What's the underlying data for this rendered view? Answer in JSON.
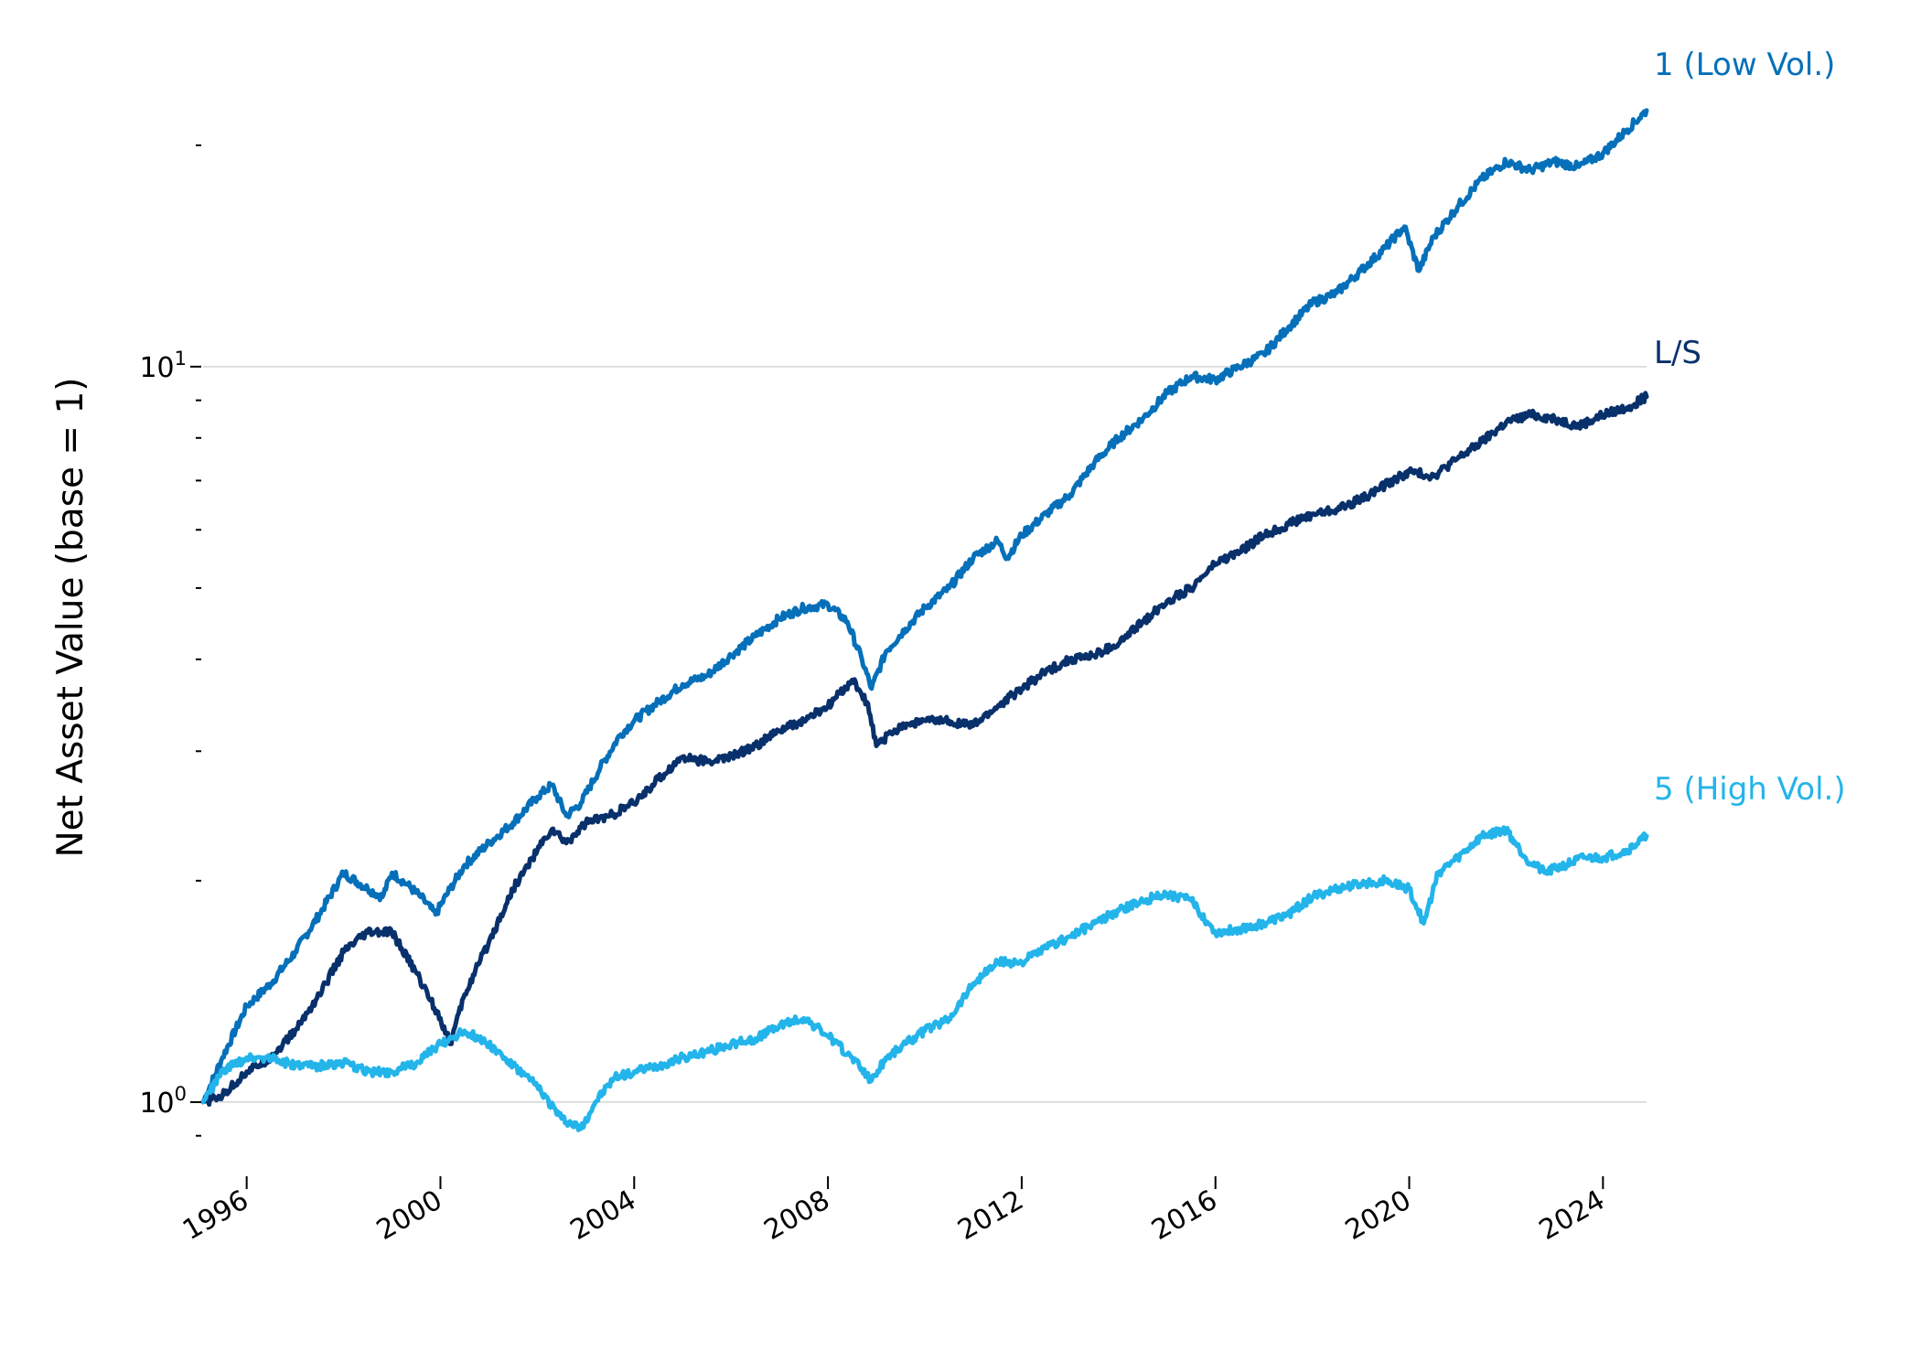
{
  "chart_data": {
    "type": "line",
    "title": "",
    "xlabel": "",
    "ylabel": "Net Asset Value (base = 1)",
    "y_scale": "log",
    "xlim": [
      1995.1,
      2024.9
    ],
    "ylim": [
      0.83,
      23.0
    ],
    "grid": "horizontal major gridlines at 10^0 and 10^1",
    "legend": "labels at right end of lines",
    "x_ticks": [
      1996,
      2000,
      2004,
      2008,
      2012,
      2016,
      2020,
      2024
    ],
    "x_tick_labels": [
      "1996",
      "2000",
      "2004",
      "2008",
      "2012",
      "2016",
      "2020",
      "2024"
    ],
    "y_ticks": [
      1,
      10
    ],
    "y_tick_labels": [
      {
        "base": "10",
        "exp": "0"
      },
      {
        "base": "10",
        "exp": "1"
      }
    ],
    "series": [
      {
        "name": "1 (Low Vol.)",
        "color": "#0570b9",
        "x": [
          1995.1,
          1995.5,
          1996.0,
          1996.5,
          1997.0,
          1997.5,
          1998.0,
          1998.5,
          1998.8,
          1999.0,
          1999.3,
          1999.6,
          1999.9,
          2000.2,
          2000.5,
          2001.0,
          2001.5,
          2002.0,
          2002.3,
          2002.6,
          2002.9,
          2003.3,
          2003.7,
          2004.0,
          2004.5,
          2005.0,
          2005.5,
          2006.0,
          2006.5,
          2007.0,
          2007.5,
          2008.0,
          2008.4,
          2008.7,
          2008.9,
          2009.2,
          2009.6,
          2010.0,
          2010.5,
          2011.0,
          2011.5,
          2011.7,
          2012.0,
          2012.5,
          2013.0,
          2013.5,
          2014.0,
          2014.5,
          2015.0,
          2015.5,
          2016.0,
          2016.5,
          2017.0,
          2017.5,
          2018.0,
          2018.5,
          2019.0,
          2019.5,
          2019.9,
          2020.2,
          2020.5,
          2021.0,
          2021.5,
          2022.0,
          2022.5,
          2023.0,
          2023.5,
          2024.0,
          2024.5,
          2024.9
        ],
        "values": [
          1.0,
          1.15,
          1.35,
          1.45,
          1.6,
          1.8,
          2.05,
          1.95,
          1.9,
          2.05,
          1.98,
          1.9,
          1.8,
          1.95,
          2.1,
          2.25,
          2.4,
          2.6,
          2.7,
          2.45,
          2.55,
          2.85,
          3.15,
          3.3,
          3.5,
          3.7,
          3.8,
          4.05,
          4.3,
          4.55,
          4.7,
          4.75,
          4.5,
          4.0,
          3.65,
          4.1,
          4.4,
          4.7,
          5.0,
          5.5,
          5.8,
          5.5,
          5.9,
          6.3,
          6.7,
          7.4,
          8.0,
          8.5,
          9.2,
          9.7,
          9.6,
          10.0,
          10.4,
          11.3,
          12.2,
          12.6,
          13.5,
          14.5,
          15.5,
          13.5,
          15.0,
          16.5,
          18.0,
          19.0,
          18.5,
          19.0,
          18.7,
          19.5,
          21.0,
          22.3
        ]
      },
      {
        "name": "L/S",
        "color": "#08306b",
        "x": [
          1995.1,
          1995.5,
          1996.0,
          1996.5,
          1997.0,
          1997.5,
          1998.0,
          1998.5,
          1999.0,
          1999.5,
          2000.0,
          2000.2,
          2000.5,
          2001.0,
          2001.5,
          2002.0,
          2002.3,
          2002.6,
          2003.0,
          2003.5,
          2004.0,
          2004.5,
          2005.0,
          2005.5,
          2006.0,
          2006.5,
          2007.0,
          2007.5,
          2008.0,
          2008.5,
          2008.8,
          2009.0,
          2009.5,
          2010.0,
          2010.5,
          2011.0,
          2011.5,
          2012.0,
          2012.5,
          2013.0,
          2013.5,
          2014.0,
          2014.5,
          2015.0,
          2015.5,
          2016.0,
          2016.5,
          2017.0,
          2017.5,
          2018.0,
          2018.5,
          2019.0,
          2019.5,
          2020.0,
          2020.5,
          2021.0,
          2021.5,
          2022.0,
          2022.5,
          2023.0,
          2023.5,
          2024.0,
          2024.5,
          2024.9
        ],
        "values": [
          1.0,
          1.02,
          1.1,
          1.15,
          1.25,
          1.4,
          1.6,
          1.7,
          1.7,
          1.5,
          1.3,
          1.2,
          1.4,
          1.65,
          1.95,
          2.2,
          2.35,
          2.25,
          2.4,
          2.45,
          2.55,
          2.75,
          2.95,
          2.9,
          2.95,
          3.05,
          3.2,
          3.3,
          3.45,
          3.75,
          3.5,
          3.05,
          3.25,
          3.3,
          3.3,
          3.25,
          3.45,
          3.65,
          3.85,
          4.0,
          4.05,
          4.2,
          4.5,
          4.8,
          5.0,
          5.4,
          5.6,
          5.9,
          6.1,
          6.3,
          6.4,
          6.6,
          6.9,
          7.2,
          7.1,
          7.5,
          7.9,
          8.4,
          8.6,
          8.5,
          8.3,
          8.6,
          8.8,
          9.1
        ]
      },
      {
        "name": "5 (High Vol.)",
        "color": "#23b4ea",
        "x": [
          1995.1,
          1995.5,
          1996.0,
          1996.5,
          1997.0,
          1997.5,
          1998.0,
          1998.5,
          1999.0,
          1999.5,
          2000.0,
          2000.5,
          2001.0,
          2001.5,
          2002.0,
          2002.5,
          2002.9,
          2003.2,
          2003.6,
          2004.0,
          2004.5,
          2005.0,
          2005.5,
          2006.0,
          2006.5,
          2007.0,
          2007.5,
          2008.0,
          2008.5,
          2008.9,
          2009.2,
          2009.6,
          2010.0,
          2010.5,
          2011.0,
          2011.5,
          2012.0,
          2012.5,
          2013.0,
          2013.5,
          2014.0,
          2014.5,
          2015.0,
          2015.5,
          2016.0,
          2016.5,
          2017.0,
          2017.5,
          2018.0,
          2018.5,
          2019.0,
          2019.5,
          2020.0,
          2020.3,
          2020.6,
          2021.0,
          2021.5,
          2022.0,
          2022.4,
          2022.8,
          2023.2,
          2023.6,
          2024.0,
          2024.5,
          2024.9
        ],
        "values": [
          1.0,
          1.1,
          1.15,
          1.15,
          1.12,
          1.12,
          1.13,
          1.1,
          1.1,
          1.13,
          1.2,
          1.25,
          1.2,
          1.12,
          1.05,
          0.95,
          0.92,
          1.0,
          1.08,
          1.1,
          1.12,
          1.15,
          1.17,
          1.2,
          1.22,
          1.27,
          1.3,
          1.23,
          1.15,
          1.07,
          1.15,
          1.2,
          1.25,
          1.3,
          1.45,
          1.55,
          1.55,
          1.62,
          1.68,
          1.75,
          1.82,
          1.88,
          1.92,
          1.88,
          1.7,
          1.72,
          1.75,
          1.8,
          1.9,
          1.95,
          1.98,
          2.0,
          1.95,
          1.75,
          2.05,
          2.15,
          2.3,
          2.35,
          2.15,
          2.05,
          2.1,
          2.15,
          2.15,
          2.2,
          2.3
        ]
      }
    ]
  }
}
